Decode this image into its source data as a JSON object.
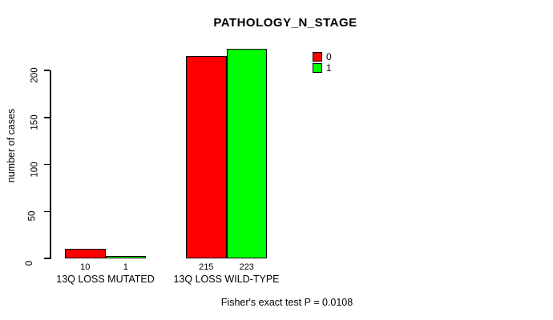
{
  "chart_data": {
    "type": "bar",
    "title": "PATHOLOGY_N_STAGE",
    "ylabel": "number of cases",
    "xlabel": "",
    "categories": [
      "13Q LOSS MUTATED",
      "13Q LOSS WILD-TYPE"
    ],
    "series": [
      {
        "name": "0",
        "color": "#FF0000",
        "values": [
          10,
          215
        ]
      },
      {
        "name": "1",
        "color": "#00FF00",
        "values": [
          1,
          223
        ]
      }
    ],
    "bar_value_labels": [
      [
        "10",
        "215"
      ],
      [
        "1",
        "223"
      ]
    ],
    "y_ticks": [
      0,
      50,
      100,
      150,
      200
    ],
    "ylim": [
      0,
      225
    ],
    "grid": false,
    "legend": {
      "position": "top-right",
      "entries": [
        {
          "label": "0",
          "color": "#FF0000"
        },
        {
          "label": "1",
          "color": "#00FF00"
        }
      ]
    },
    "annotation": "Fisher's exact test P = 0.0108"
  }
}
